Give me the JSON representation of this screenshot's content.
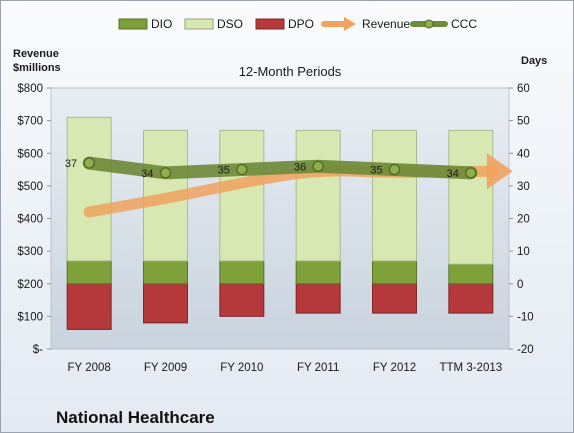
{
  "chart_data": {
    "type": "bar",
    "title": "12-Month Periods",
    "company": "National Healthcare",
    "categories": [
      "FY 2008",
      "FY 2009",
      "FY 2010",
      "FY 2011",
      "FY 2012",
      "TTM 3-2013"
    ],
    "left_axis": {
      "label_line1": "Revenue",
      "label_line2": "$millions",
      "ylim": [
        0,
        800
      ],
      "ticks": [
        0,
        100,
        200,
        300,
        400,
        500,
        600,
        700,
        800
      ],
      "tick_labels": [
        "$-",
        "$100",
        "$200",
        "$300",
        "$400",
        "$500",
        "$600",
        "$700",
        "$800"
      ]
    },
    "right_axis": {
      "label": "Days",
      "ylim": [
        -20,
        60
      ],
      "ticks": [
        -20,
        -10,
        0,
        10,
        20,
        30,
        40,
        50,
        60
      ],
      "tick_labels": [
        "-20",
        "-10",
        "0",
        "10",
        "20",
        "30",
        "40",
        "50",
        "60"
      ]
    },
    "series": [
      {
        "name": "DIO",
        "kind": "stacked-bar",
        "axis": "days",
        "color": "#7ea13a",
        "values": [
          7,
          7,
          7,
          7,
          7,
          6
        ]
      },
      {
        "name": "DSO",
        "kind": "stacked-bar",
        "axis": "days",
        "color": "#d7e8b2",
        "values": [
          44,
          40,
          40,
          40,
          40,
          41
        ]
      },
      {
        "name": "DPO",
        "kind": "negative-bar",
        "axis": "days",
        "color": "#b5383a",
        "values": [
          -14,
          -12,
          -10,
          -9,
          -9,
          -9
        ]
      },
      {
        "name": "Revenue",
        "kind": "arrow-line",
        "axis": "revenue",
        "color": "#f0a25e",
        "values": [
          420,
          460,
          510,
          550,
          540,
          545
        ]
      },
      {
        "name": "CCC",
        "kind": "line",
        "axis": "days",
        "color": "#6f8a3a",
        "values": [
          37,
          34,
          35,
          36,
          35,
          34
        ],
        "labels": [
          "37",
          "34",
          "35",
          "36",
          "35",
          "34"
        ]
      }
    ],
    "legend_position": "top",
    "grid": false
  }
}
